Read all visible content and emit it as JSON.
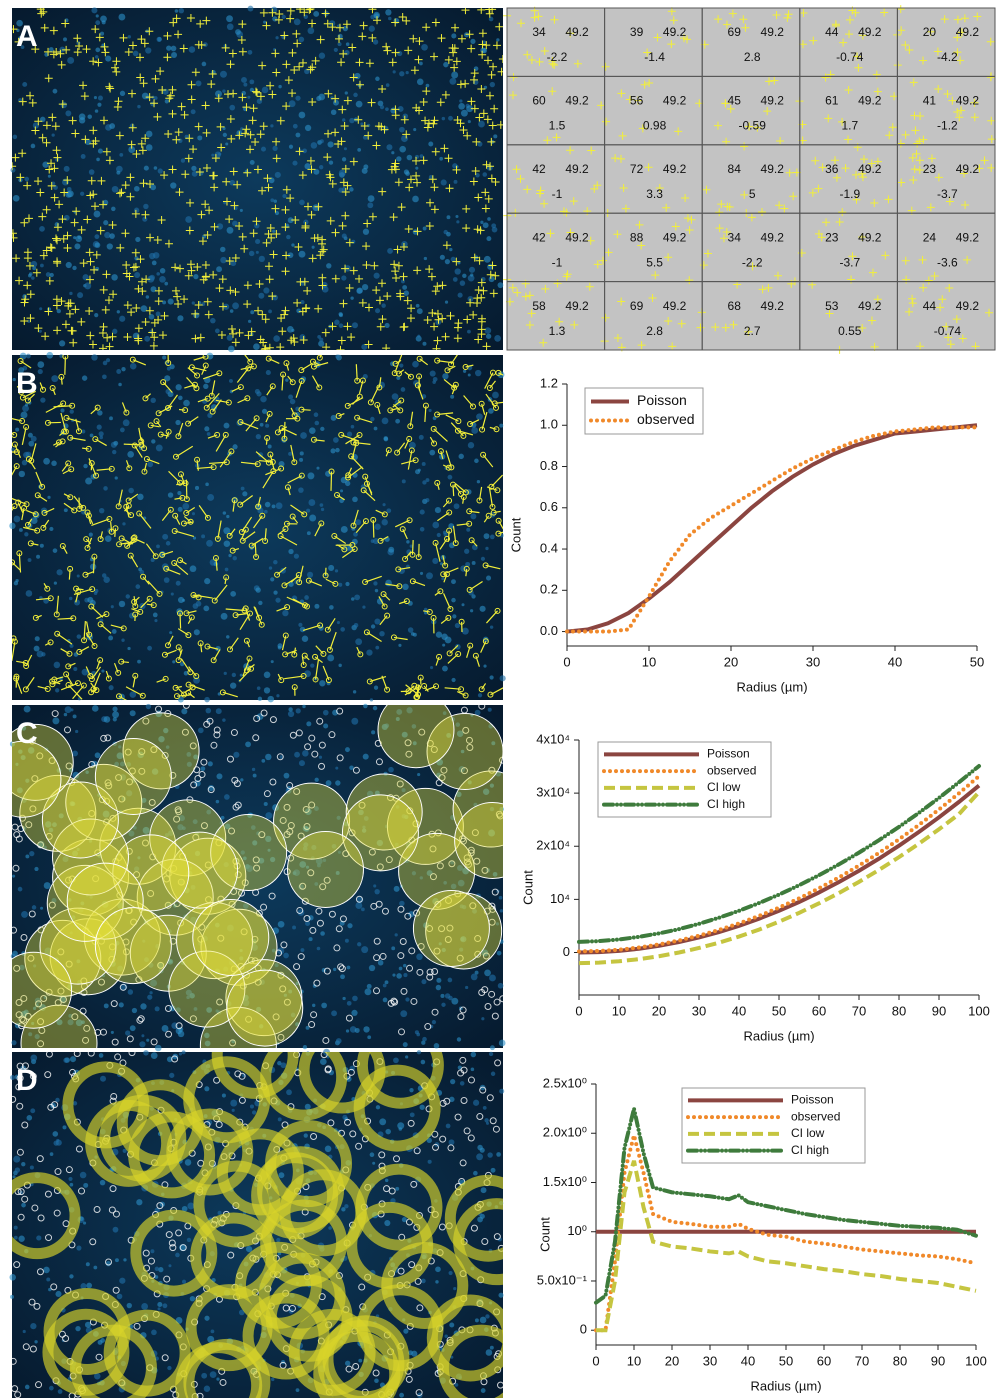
{
  "panels": [
    "A",
    "B",
    "C",
    "D"
  ],
  "grid": {
    "rows": [
      [
        {
          "count": 34,
          "expected": 49.2,
          "z": -2.2
        },
        {
          "count": 39,
          "expected": 49.2,
          "z": -1.4
        },
        {
          "count": 69,
          "expected": 49.2,
          "z": 2.8
        },
        {
          "count": 44,
          "expected": 49.2,
          "z": -0.74
        },
        {
          "count": 20,
          "expected": 49.2,
          "z": -4.2
        }
      ],
      [
        {
          "count": 60,
          "expected": 49.2,
          "z": 1.5
        },
        {
          "count": 56,
          "expected": 49.2,
          "z": 0.98
        },
        {
          "count": 45,
          "expected": 49.2,
          "z": -0.59
        },
        {
          "count": 61,
          "expected": 49.2,
          "z": 1.7
        },
        {
          "count": 41,
          "expected": 49.2,
          "z": -1.2
        }
      ],
      [
        {
          "count": 42,
          "expected": 49.2,
          "z": -1
        },
        {
          "count": 72,
          "expected": 49.2,
          "z": 3.3
        },
        {
          "count": 84,
          "expected": 49.2,
          "z": 5
        },
        {
          "count": 36,
          "expected": 49.2,
          "z": -1.9
        },
        {
          "count": 23,
          "expected": 49.2,
          "z": -3.7
        }
      ],
      [
        {
          "count": 42,
          "expected": 49.2,
          "z": -1
        },
        {
          "count": 88,
          "expected": 49.2,
          "z": 5.5
        },
        {
          "count": 34,
          "expected": 49.2,
          "z": -2.2
        },
        {
          "count": 23,
          "expected": 49.2,
          "z": -3.7
        },
        {
          "count": 24,
          "expected": 49.2,
          "z": -3.6
        }
      ],
      [
        {
          "count": 58,
          "expected": 49.2,
          "z": 1.3
        },
        {
          "count": 69,
          "expected": 49.2,
          "z": 2.8
        },
        {
          "count": 68,
          "expected": 49.2,
          "z": 2.7
        },
        {
          "count": 53,
          "expected": 49.2,
          "z": 0.55
        },
        {
          "count": 44,
          "expected": 49.2,
          "z": -0.74
        }
      ]
    ]
  },
  "chart_data": [
    {
      "type": "line",
      "x_label": "Radius (µm)",
      "y_label": "Count",
      "legend": "top-left",
      "xlim": [
        0,
        50
      ],
      "xticks": [
        0,
        10,
        20,
        30,
        40,
        50
      ],
      "ylim": [
        -0.07,
        1.2
      ],
      "yticks": [
        {
          "value": 0,
          "label": "0.0"
        },
        0.2,
        0.4,
        0.6,
        0.8,
        {
          "value": 1,
          "label": "1.0"
        },
        1.2
      ],
      "x": [
        0,
        2.5,
        5,
        7.5,
        10,
        12.5,
        15,
        17.5,
        20,
        22.5,
        25,
        27.5,
        30,
        32.5,
        35,
        37.5,
        40,
        42.5,
        45,
        47.5,
        50
      ],
      "series": [
        {
          "name": "Poisson",
          "color": "#8b4540",
          "dash": "solid",
          "values": [
            0,
            0.01,
            0.04,
            0.09,
            0.16,
            0.24,
            0.33,
            0.42,
            0.51,
            0.6,
            0.68,
            0.75,
            0.81,
            0.86,
            0.9,
            0.93,
            0.96,
            0.97,
            0.98,
            0.99,
            1.0
          ]
        },
        {
          "name": "observed",
          "color": "#f0892a",
          "dash": "dotted",
          "values": [
            0,
            0,
            0,
            0.01,
            0.17,
            0.34,
            0.47,
            0.55,
            0.61,
            0.67,
            0.73,
            0.79,
            0.84,
            0.88,
            0.92,
            0.95,
            0.97,
            0.98,
            0.99,
            0.99,
            0.99
          ]
        }
      ]
    },
    {
      "type": "line",
      "x_label": "Radius (µm)",
      "y_label": "Count",
      "legend": "top-left",
      "xlim": [
        0,
        100
      ],
      "xticks": [
        0,
        10,
        20,
        30,
        40,
        50,
        60,
        70,
        80,
        90,
        100
      ],
      "ylim": [
        -8000,
        40000
      ],
      "yticks": [
        0,
        {
          "value": 10000,
          "label": "10⁴"
        },
        {
          "value": 20000,
          "label": "2x10⁴"
        },
        {
          "value": 30000,
          "label": "3x10⁴"
        },
        {
          "value": 40000,
          "label": "4x10⁴"
        }
      ],
      "x": [
        0,
        5,
        10,
        15,
        20,
        25,
        30,
        35,
        40,
        45,
        50,
        55,
        60,
        65,
        70,
        75,
        80,
        85,
        90,
        95,
        100
      ],
      "series": [
        {
          "name": "Poisson",
          "color": "#8b4540",
          "dash": "solid",
          "values": [
            0,
            79,
            314,
            707,
            1257,
            1963,
            2827,
            3848,
            5027,
            6362,
            7854,
            9503,
            11310,
            13273,
            15394,
            17671,
            20106,
            22698,
            25447,
            28353,
            31416
          ]
        },
        {
          "name": "observed",
          "color": "#f0892a",
          "dash": "dotted",
          "values": [
            200,
            280,
            530,
            940,
            1520,
            2260,
            3170,
            4240,
            5480,
            6880,
            8450,
            10180,
            12080,
            14140,
            16360,
            18750,
            21310,
            24030,
            26920,
            29970,
            33190
          ]
        },
        {
          "name": "CI low",
          "color": "#c5c540",
          "dash": "dashed",
          "values": [
            -2000,
            -1900,
            -1650,
            -1250,
            -700,
            0,
            850,
            1850,
            3000,
            4300,
            5800,
            7450,
            9250,
            11200,
            13300,
            15550,
            17950,
            20500,
            23200,
            26050,
            30200
          ]
        },
        {
          "name": "CI high",
          "color": "#3e7b3c",
          "dash": "dashdot",
          "values": [
            2000,
            2150,
            2450,
            2950,
            3600,
            4400,
            5400,
            6550,
            7850,
            9300,
            10900,
            12650,
            14550,
            16600,
            18800,
            21150,
            23650,
            26300,
            29100,
            32050,
            35100
          ]
        }
      ]
    },
    {
      "type": "line",
      "x_label": "Radius (µm)",
      "y_label": "Count",
      "legend": "top-right",
      "xlim": [
        0,
        100
      ],
      "xticks": [
        0,
        10,
        20,
        30,
        40,
        50,
        60,
        70,
        80,
        90,
        100
      ],
      "ylim": [
        -0.15,
        2.5
      ],
      "yticks": [
        0,
        {
          "value": 0.5,
          "label": "5.0x10⁻¹"
        },
        {
          "value": 1,
          "label": "10⁰"
        },
        {
          "value": 1.5,
          "label": "1.5x10⁰"
        },
        {
          "value": 2,
          "label": "2.0x10⁰"
        },
        {
          "value": 2.5,
          "label": "2.5x10⁰"
        }
      ],
      "x": [
        0,
        2.5,
        5,
        7.5,
        10,
        12.5,
        15,
        20,
        25,
        30,
        35,
        37.5,
        40,
        45,
        50,
        55,
        60,
        65,
        70,
        75,
        80,
        85,
        90,
        95,
        100
      ],
      "series": [
        {
          "name": "Poisson",
          "color": "#8b4540",
          "dash": "solid",
          "values": [
            1,
            1,
            1,
            1,
            1,
            1,
            1,
            1,
            1,
            1,
            1,
            1,
            1,
            1,
            1,
            1,
            1,
            1,
            1,
            1,
            1,
            1,
            1,
            1,
            1
          ]
        },
        {
          "name": "observed",
          "color": "#f0892a",
          "dash": "dotted",
          "values": [
            0,
            0,
            0.7,
            1.6,
            1.98,
            1.6,
            1.18,
            1.1,
            1.08,
            1.05,
            1.05,
            1.08,
            1.03,
            0.97,
            0.95,
            0.9,
            0.88,
            0.85,
            0.82,
            0.8,
            0.78,
            0.76,
            0.75,
            0.72,
            0.68
          ]
        },
        {
          "name": "CI low",
          "color": "#c5c540",
          "dash": "dashed",
          "values": [
            0,
            0,
            0.5,
            1.4,
            1.72,
            1.25,
            0.9,
            0.85,
            0.83,
            0.8,
            0.78,
            0.8,
            0.75,
            0.7,
            0.68,
            0.65,
            0.62,
            0.6,
            0.57,
            0.55,
            0.52,
            0.5,
            0.48,
            0.44,
            0.4
          ]
        },
        {
          "name": "CI high",
          "color": "#3e7b3c",
          "dash": "dashdot",
          "values": [
            0.28,
            0.35,
            0.9,
            1.85,
            2.25,
            1.8,
            1.45,
            1.4,
            1.38,
            1.36,
            1.33,
            1.37,
            1.3,
            1.26,
            1.22,
            1.18,
            1.15,
            1.12,
            1.1,
            1.08,
            1.06,
            1.05,
            1.04,
            1.02,
            0.96
          ]
        }
      ]
    }
  ]
}
